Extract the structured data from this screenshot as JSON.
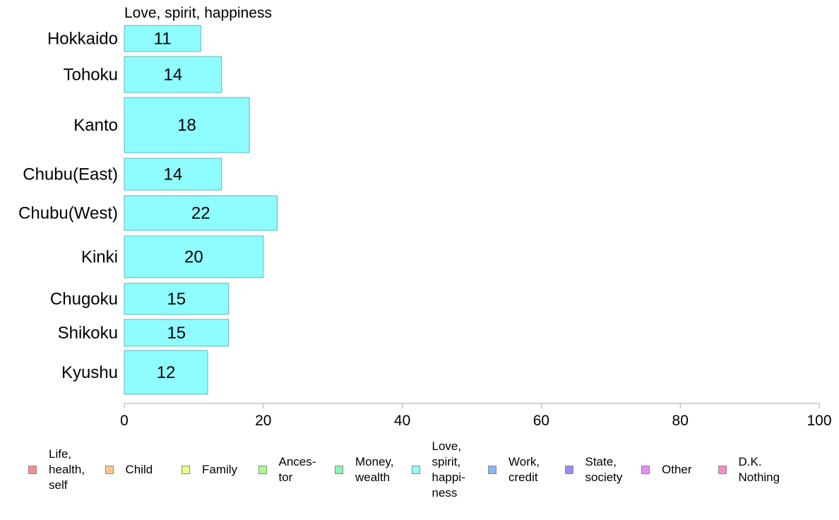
{
  "chart_data": {
    "type": "bar",
    "orientation": "horizontal",
    "title": "Love, spirit, happiness",
    "categories": [
      "Hokkaido",
      "Tohoku",
      "Kanto",
      "Chubu(East)",
      "Chubu(West)",
      "Kinki",
      "Chugoku",
      "Shikoku",
      "Kyushu"
    ],
    "values": [
      11,
      14,
      18,
      14,
      22,
      20,
      15,
      15,
      12
    ],
    "value_labels": [
      "11",
      "14",
      "18",
      "14",
      "22",
      "20",
      "15",
      "15",
      "12"
    ],
    "xlim": [
      0,
      100
    ],
    "xticks": [
      0,
      20,
      40,
      60,
      80,
      100
    ],
    "xtick_labels": [
      "0",
      "20",
      "40",
      "60",
      "80",
      "100"
    ],
    "grid": false,
    "bar_color": "#8ffcff",
    "bar_edge_color": "#5fb7b9",
    "axis_color": "#aaaaaa",
    "legend_placement": "bottom",
    "legend": [
      {
        "label": "Life,\nhealth,\nself",
        "color": "#fc8b8b"
      },
      {
        "label": "Child",
        "color": "#fdc98b"
      },
      {
        "label": "Family",
        "color": "#f0f98b"
      },
      {
        "label": "Ances-\ntor",
        "color": "#a9fc8b"
      },
      {
        "label": "Money,\nwealth",
        "color": "#8bf5b5"
      },
      {
        "label": "Love,\nspirit,\nhappi-\nness",
        "color": "#8ffcff"
      },
      {
        "label": "Work,\ncredit",
        "color": "#8bb5f5"
      },
      {
        "label": "State,\nsociety",
        "color": "#9a8bf7"
      },
      {
        "label": "Other",
        "color": "#e88bf7"
      },
      {
        "label": "D.K.\nNothing",
        "color": "#fb8bcc"
      }
    ]
  }
}
